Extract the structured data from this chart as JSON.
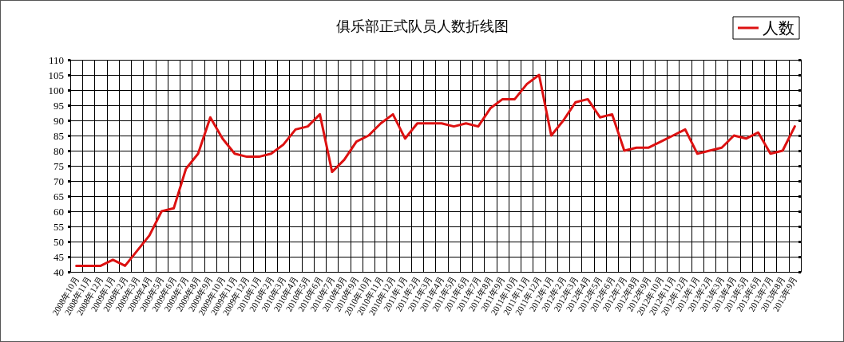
{
  "chart_data": {
    "type": "line",
    "title": "俱乐部正式队员人数折线图",
    "categories": [
      "2008年10月",
      "2008年11月",
      "2008年12月",
      "2009年1月",
      "2009年2月",
      "2009年3月",
      "2009年4月",
      "2009年5月",
      "2009年6月",
      "2009年7月",
      "2009年8月",
      "2009年9月",
      "2009年10月",
      "2009年11月",
      "2009年12月",
      "2010年1月",
      "2010年2月",
      "2010年3月",
      "2010年4月",
      "2010年5月",
      "2010年6月",
      "2010年7月",
      "2010年8月",
      "2010年9月",
      "2010年10月",
      "2010年11月",
      "2010年12月",
      "2011年1月",
      "2011年2月",
      "2011年3月",
      "2011年4月",
      "2011年5月",
      "2011年6月",
      "2011年7月",
      "2011年8月",
      "2011年9月",
      "2011年10月",
      "2011年11月",
      "2011年12月",
      "2012年1月",
      "2012年2月",
      "2012年3月",
      "2012年4月",
      "2012年5月",
      "2012年6月",
      "2012年7月",
      "2012年8月",
      "2012年9月",
      "2012年10月",
      "2012年11月",
      "2012年12月",
      "2013年1月",
      "2013年2月",
      "2013年3月",
      "2013年4月",
      "2013年5月",
      "2013年6月",
      "2013年7月",
      "2013年8月",
      "2013年9月"
    ],
    "series": [
      {
        "name": "人数",
        "color": "#dd1111",
        "values": [
          42,
          42,
          42,
          44,
          42,
          47,
          52,
          60,
          61,
          74,
          79,
          91,
          84,
          79,
          78,
          78,
          79,
          82,
          87,
          88,
          92,
          73,
          77,
          83,
          85,
          89,
          92,
          84,
          89,
          89,
          89,
          88,
          89,
          88,
          94,
          97,
          97,
          102,
          105,
          85,
          90,
          96,
          97,
          91,
          92,
          80,
          81,
          81,
          83,
          85,
          87,
          79,
          80,
          81,
          85,
          84,
          86,
          79,
          80,
          88
        ]
      }
    ],
    "ylim": [
      40,
      110
    ],
    "yticks": [
      40,
      45,
      50,
      55,
      60,
      65,
      70,
      75,
      80,
      85,
      90,
      95,
      100,
      105,
      110
    ],
    "grid": true,
    "legend": "top right",
    "marker": "none",
    "line_style": "solid"
  }
}
